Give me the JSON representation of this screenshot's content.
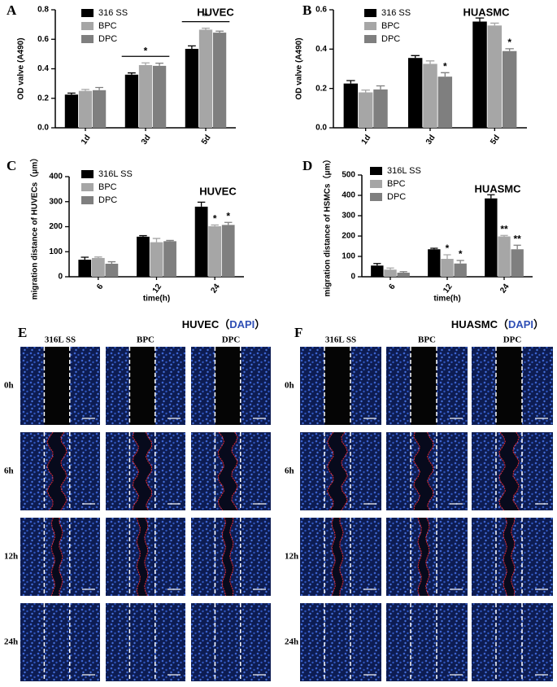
{
  "chart_data": [
    {
      "type": "bar",
      "panel": "A",
      "title": "HUVEC",
      "ylabel": "OD valve (A490)",
      "categories": [
        "1d",
        "3d",
        "5d"
      ],
      "series": [
        {
          "name": "316 SS",
          "color": "#000000",
          "values": [
            0.225,
            0.36,
            0.535
          ],
          "errors": [
            0.01,
            0.012,
            0.02
          ]
        },
        {
          "name": "BPC",
          "color": "#a6a6a6",
          "values": [
            0.25,
            0.425,
            0.665
          ],
          "errors": [
            0.01,
            0.015,
            0.01
          ]
        },
        {
          "name": "DPC",
          "color": "#7f7f7f",
          "values": [
            0.255,
            0.42,
            0.645
          ],
          "errors": [
            0.018,
            0.018,
            0.01
          ]
        }
      ],
      "ylim": [
        0,
        0.8
      ],
      "yticks": [
        {
          "value": 0,
          "label": "0.0"
        },
        0.2,
        0.4,
        0.6,
        0.8
      ],
      "annotations": [
        {
          "text": "*",
          "category": 1
        },
        {
          "text": "*",
          "category": 2
        }
      ]
    },
    {
      "type": "bar",
      "panel": "B",
      "title": "HUASMC",
      "ylabel": "OD valve (A490)",
      "categories": [
        "1d",
        "3d",
        "5d"
      ],
      "series": [
        {
          "name": "316 SS",
          "color": "#000000",
          "values": [
            0.225,
            0.355,
            0.54
          ],
          "errors": [
            0.015,
            0.012,
            0.018
          ]
        },
        {
          "name": "BPC",
          "color": "#a6a6a6",
          "values": [
            0.18,
            0.325,
            0.52
          ],
          "errors": [
            0.012,
            0.015,
            0.012
          ]
        },
        {
          "name": "DPC",
          "color": "#7f7f7f",
          "values": [
            0.195,
            0.26,
            0.39
          ],
          "errors": [
            0.018,
            0.02,
            0.012
          ]
        }
      ],
      "ylim": [
        0,
        0.6
      ],
      "yticks": [
        {
          "value": 0,
          "label": "0.0"
        },
        0.2,
        0.4,
        0.6
      ],
      "annotations": [
        {
          "text": "*",
          "category": 1,
          "series": 2
        },
        {
          "text": "*",
          "category": 2,
          "series": 2
        }
      ]
    },
    {
      "type": "bar",
      "panel": "C",
      "title": "HUVEC",
      "ylabel": "migration distance of HUVECs（μm）",
      "xlabel": "time(h)",
      "categories": [
        "6",
        "12",
        "24"
      ],
      "series": [
        {
          "name": "316L SS",
          "color": "#000000",
          "values": [
            68,
            160,
            280
          ],
          "errors": [
            10,
            4,
            18
          ]
        },
        {
          "name": "BPC",
          "color": "#a6a6a6",
          "values": [
            75,
            138,
            202
          ],
          "errors": [
            4,
            15,
            5
          ]
        },
        {
          "name": "DPC",
          "color": "#7f7f7f",
          "values": [
            52,
            142,
            207
          ],
          "errors": [
            8,
            3,
            10
          ]
        }
      ],
      "ylim": [
        0,
        400
      ],
      "yticks": [
        0,
        100,
        200,
        300,
        400
      ],
      "annotations": [
        {
          "text": "*",
          "category": 2,
          "series": 1
        },
        {
          "text": "*",
          "category": 2,
          "series": 2
        }
      ]
    },
    {
      "type": "bar",
      "panel": "D",
      "title": "HUASMC",
      "ylabel": "migration distance of HSMCs（μm）",
      "xlabel": "time(h)",
      "categories": [
        "6",
        "12",
        "24"
      ],
      "series": [
        {
          "name": "316L SS",
          "color": "#000000",
          "values": [
            55,
            135,
            385
          ],
          "errors": [
            10,
            5,
            18
          ]
        },
        {
          "name": "BPC",
          "color": "#a6a6a6",
          "values": [
            35,
            88,
            198
          ],
          "errors": [
            8,
            20,
            5
          ]
        },
        {
          "name": "DPC",
          "color": "#7f7f7f",
          "values": [
            20,
            65,
            135
          ],
          "errors": [
            5,
            15,
            20
          ]
        }
      ],
      "ylim": [
        0,
        500
      ],
      "yticks": [
        0,
        100,
        200,
        300,
        400,
        500
      ],
      "annotations": [
        {
          "text": "*",
          "category": 1,
          "series": 1
        },
        {
          "text": "*",
          "category": 1,
          "series": 2
        },
        {
          "text": "**",
          "category": 2,
          "series": 1
        },
        {
          "text": "**",
          "category": 2,
          "series": 2
        }
      ]
    }
  ],
  "images": [
    {
      "label": "E",
      "title_parts": [
        "HUVEC（",
        "DAPI",
        "）"
      ],
      "columns": [
        "316L SS",
        "BPC",
        "DPC"
      ],
      "rows": [
        "0h",
        "6h",
        "12h",
        "24h"
      ]
    },
    {
      "label": "F",
      "title_parts": [
        "HUASMC（",
        "DAPI",
        "）"
      ],
      "columns": [
        "316L SS",
        "BPC",
        "DPC"
      ],
      "rows": [
        "0h",
        "6h",
        "12h",
        "24h"
      ]
    }
  ]
}
